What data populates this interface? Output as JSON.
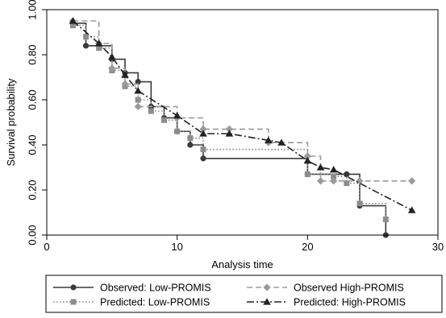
{
  "chart_data": {
    "type": "line",
    "title": "",
    "xlabel": "Analysis time",
    "ylabel": "Survival probability",
    "xlim": [
      0,
      30
    ],
    "ylim": [
      0,
      1
    ],
    "xticks": [
      0,
      10,
      20,
      30
    ],
    "xtick_labels": [
      "0",
      "10",
      "20",
      "30"
    ],
    "yticks": [
      0,
      0.2,
      0.4,
      0.6,
      0.8,
      1.0
    ],
    "ytick_labels": [
      "0.00",
      "0.20",
      "0.40",
      "0.60",
      "0.80",
      "1.00"
    ],
    "grid": false,
    "legend_position": "bottom",
    "series": [
      {
        "name": "Observed: Low-PROMIS",
        "style": "step",
        "line": "solid",
        "marker": "circle",
        "color": "#3a3a3a",
        "points": [
          [
            2,
            0.94
          ],
          [
            3,
            0.84
          ],
          [
            4,
            0.84
          ],
          [
            5,
            0.78
          ],
          [
            6,
            0.72
          ],
          [
            7,
            0.68
          ],
          [
            8,
            0.57
          ],
          [
            9,
            0.52
          ],
          [
            10,
            0.46
          ],
          [
            11,
            0.4
          ],
          [
            12,
            0.34
          ],
          [
            20,
            0.27
          ],
          [
            23,
            0.27
          ],
          [
            24,
            0.13
          ],
          [
            26,
            0.0
          ]
        ]
      },
      {
        "name": "Predicted: Low-PROMIS",
        "style": "step",
        "line": "dotted",
        "marker": "square",
        "color": "#8c8c8c",
        "points": [
          [
            2,
            0.93
          ],
          [
            3,
            0.88
          ],
          [
            4,
            0.83
          ],
          [
            5,
            0.73
          ],
          [
            6,
            0.66
          ],
          [
            7,
            0.6
          ],
          [
            8,
            0.55
          ],
          [
            9,
            0.51
          ],
          [
            10,
            0.46
          ],
          [
            11,
            0.43
          ],
          [
            12,
            0.38
          ],
          [
            20,
            0.27
          ],
          [
            22,
            0.26
          ],
          [
            23,
            0.23
          ],
          [
            24,
            0.14
          ],
          [
            26,
            0.07
          ]
        ]
      },
      {
        "name": "Observed High-PROMIS",
        "style": "step",
        "line": "dashed",
        "marker": "diamond",
        "color": "#9a9a9a",
        "points": [
          [
            2,
            0.95
          ],
          [
            4,
            0.85
          ],
          [
            5,
            0.74
          ],
          [
            6,
            0.67
          ],
          [
            7,
            0.57
          ],
          [
            10,
            0.52
          ],
          [
            12,
            0.47
          ],
          [
            14,
            0.47
          ],
          [
            17,
            0.41
          ],
          [
            20,
            0.35
          ],
          [
            21,
            0.24
          ],
          [
            22,
            0.24
          ],
          [
            24,
            0.24
          ],
          [
            28,
            0.24
          ]
        ]
      },
      {
        "name": "Predicted: High-PROMIS",
        "style": "line",
        "line": "dashdot",
        "marker": "triangle",
        "color": "#222222",
        "points": [
          [
            2,
            0.95
          ],
          [
            4,
            0.85
          ],
          [
            5,
            0.79
          ],
          [
            6,
            0.71
          ],
          [
            7,
            0.64
          ],
          [
            10,
            0.53
          ],
          [
            12,
            0.45
          ],
          [
            14,
            0.45
          ],
          [
            17,
            0.42
          ],
          [
            18,
            0.41
          ],
          [
            20,
            0.33
          ],
          [
            21,
            0.3
          ],
          [
            22,
            0.29
          ],
          [
            28,
            0.11
          ]
        ]
      }
    ],
    "legend_rows": [
      [
        "Observed: Low-PROMIS",
        "Observed High-PROMIS"
      ],
      [
        "Predicted: Low-PROMIS",
        "Predicted: High-PROMIS"
      ]
    ]
  }
}
